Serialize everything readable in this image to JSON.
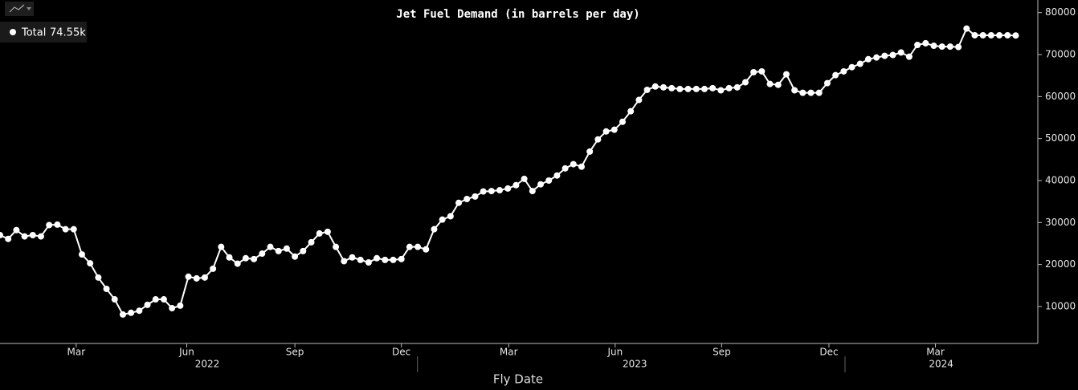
{
  "chart_data": {
    "type": "line",
    "title": "Jet Fuel Demand (in barrels per day)",
    "x_label": "Fly Date",
    "x": [
      0,
      1,
      2,
      3,
      4,
      5,
      6,
      7,
      8,
      9,
      10,
      11,
      12,
      13,
      14,
      15,
      16,
      17,
      18,
      19,
      20,
      21,
      22,
      23,
      24,
      25,
      26,
      27,
      28,
      29,
      30,
      31,
      32,
      33,
      34,
      35,
      36,
      37,
      38,
      39,
      40,
      41,
      42,
      43,
      44,
      45,
      46,
      47,
      48,
      49,
      50,
      51,
      52,
      53,
      54,
      55,
      56,
      57,
      58,
      59,
      60,
      61,
      62,
      63,
      64,
      65,
      66,
      67,
      68,
      69,
      70,
      71,
      72,
      73,
      74,
      75,
      76,
      77,
      78,
      79,
      80,
      81,
      82,
      83,
      84,
      85,
      86,
      87,
      88,
      89,
      90,
      91,
      92,
      93,
      94,
      95,
      96,
      97,
      98,
      99,
      100,
      101,
      102,
      103,
      104,
      105,
      106,
      107,
      108,
      109,
      110,
      111,
      112,
      113,
      114,
      115,
      116,
      117,
      118,
      119,
      120,
      121,
      122,
      123,
      124
    ],
    "series": [
      {
        "name": "Total",
        "legend_value": "74.55k",
        "color": "#ffffff",
        "values": [
          27000,
          26100,
          28200,
          26700,
          27000,
          26700,
          29400,
          29500,
          28400,
          28400,
          22400,
          20300,
          16900,
          14200,
          11700,
          8100,
          8500,
          9000,
          10400,
          11700,
          11700,
          9600,
          10200,
          17100,
          16700,
          16900,
          19000,
          24200,
          21700,
          20200,
          21500,
          21300,
          22600,
          24200,
          23200,
          23800,
          21900,
          23200,
          25300,
          27400,
          27800,
          24200,
          20800,
          21700,
          21100,
          20500,
          21500,
          21100,
          21100,
          21300,
          24200,
          24200,
          23600,
          28400,
          30700,
          31500,
          34700,
          35600,
          36200,
          37400,
          37500,
          37700,
          38100,
          38900,
          40400,
          37500,
          39100,
          40000,
          41200,
          42900,
          43900,
          43300,
          46900,
          49800,
          51700,
          52100,
          54000,
          56500,
          59200,
          61600,
          62400,
          62200,
          62000,
          61800,
          61800,
          61800,
          61800,
          62000,
          61500,
          62000,
          62200,
          63400,
          65800,
          66000,
          63000,
          62800,
          65300,
          61500,
          60900,
          60900,
          60900,
          63200,
          65100,
          66000,
          67000,
          67800,
          68900,
          69300,
          69700,
          69900,
          70500,
          69500,
          72300,
          72700,
          72100,
          71900,
          71900,
          71800,
          76200,
          74600,
          74600,
          74600,
          74600,
          74600,
          74550
        ]
      }
    ],
    "xlim": [
      0,
      126.7
    ],
    "xticks": [
      {
        "value": 9.3,
        "label": "Mar"
      },
      {
        "value": 22.8,
        "label": "Jun"
      },
      {
        "value": 36.0,
        "label": "Sep"
      },
      {
        "value": 49.0,
        "label": "Dec"
      },
      {
        "value": 62.1,
        "label": "Mar"
      },
      {
        "value": 75.1,
        "label": "Jun"
      },
      {
        "value": 88.1,
        "label": "Sep"
      },
      {
        "value": 101.2,
        "label": "Dec"
      },
      {
        "value": 114.2,
        "label": "Mar"
      }
    ],
    "xticks_years": [
      {
        "value": 25.3,
        "label": "2022"
      },
      {
        "value": 77.5,
        "label": "2023"
      },
      {
        "value": 114.9,
        "label": "2024"
      }
    ],
    "ylim": [
      1200,
      83000
    ],
    "yticks": [
      10000,
      20000,
      30000,
      40000,
      50000,
      60000,
      70000,
      80000
    ],
    "grid": false
  }
}
